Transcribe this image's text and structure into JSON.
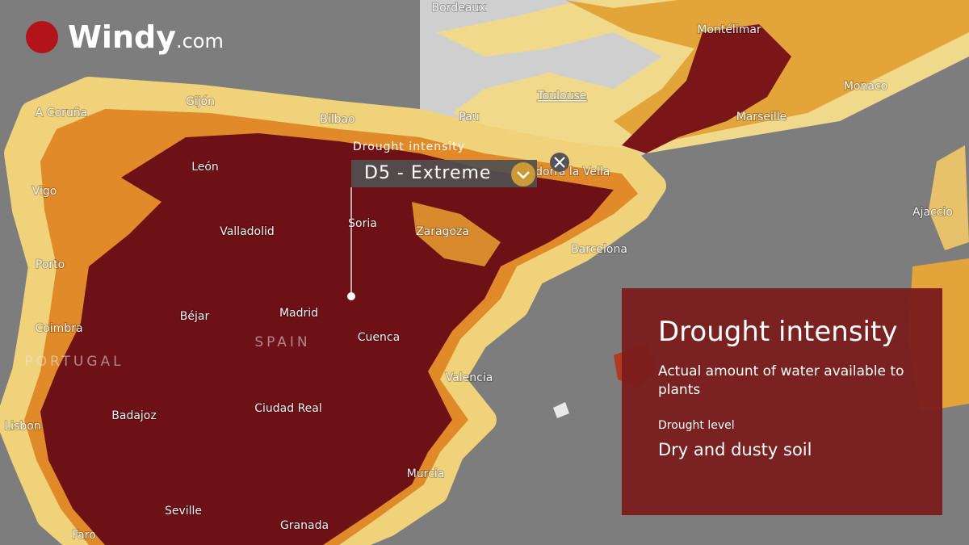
{
  "logo": {
    "name": "Windy",
    "suffix": ".com"
  },
  "picker": {
    "label": "Drought intensity",
    "value": "D5 - Extreme"
  },
  "panel": {
    "title": "Drought intensity",
    "description": "Actual amount of water available to plants",
    "level_label": "Drought level",
    "level_value": "Dry and dusty soil"
  },
  "places": [
    "Bordeaux",
    "Montélimar",
    "Toulouse",
    "Monaco",
    "Marseille",
    "A Coruña",
    "Gijón",
    "Bilbao",
    "Pau",
    "León",
    "Andorra la Vella",
    "Vigo",
    "Ajaccio",
    "Valladolid",
    "Soria",
    "Zaragoza",
    "Barcelona",
    "Porto",
    "Béjar",
    "Madrid",
    "SPAIN",
    "Cuenca",
    "Coimbra",
    "PORTUGAL",
    "Valencia",
    "Lisbon",
    "Badajoz",
    "Ciudad Real",
    "Murcia",
    "Seville",
    "Granada",
    "Faro"
  ]
}
